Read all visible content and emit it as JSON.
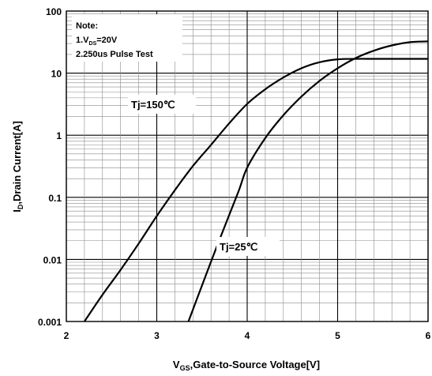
{
  "chart_data": {
    "type": "line",
    "xlabel_main": "V",
    "xlabel_sub": "GS",
    "xlabel_rest": ",Gate-to-Source Voltage[V]",
    "ylabel_main": "I",
    "ylabel_sub": "D",
    "ylabel_rest": ",Drain Current[A]",
    "xlim": [
      2,
      6
    ],
    "ylim": [
      0.001,
      100
    ],
    "yscale": "log",
    "grid": true,
    "x_ticks": [
      "2",
      "3",
      "4",
      "5",
      "6"
    ],
    "y_ticks": [
      "0.001",
      "0.01",
      "0.1",
      "1",
      "10",
      "100"
    ],
    "note": {
      "title": "Note:",
      "line1_main": "1.V",
      "line1_sub": "DS",
      "line1_rest": "=20V",
      "line2": "2.250us Pulse Test"
    },
    "series": [
      {
        "name": "Tj=150℃",
        "x": [
          2.2,
          2.4,
          2.6,
          2.8,
          3.0,
          3.2,
          3.4,
          3.6,
          3.8,
          4.0,
          4.2,
          4.4,
          4.6,
          4.8,
          5.0,
          5.2,
          5.4,
          5.6,
          5.8,
          6.0
        ],
        "y": [
          0.001,
          0.0027,
          0.0068,
          0.018,
          0.05,
          0.13,
          0.32,
          0.7,
          1.55,
          3.2,
          5.5,
          8.5,
          12.0,
          15.0,
          16.7,
          17.0,
          17.0,
          17.0,
          17.0,
          17.0
        ]
      },
      {
        "name": "Tj=25℃",
        "x": [
          3.35,
          3.5,
          3.7,
          3.9,
          4.0,
          4.2,
          4.4,
          4.6,
          4.8,
          5.0,
          5.2,
          5.4,
          5.6,
          5.8,
          6.0
        ],
        "y": [
          0.001,
          0.0038,
          0.022,
          0.12,
          0.3,
          0.9,
          2.1,
          4.2,
          7.5,
          12.0,
          17.5,
          23.0,
          28.0,
          31.5,
          32.5
        ]
      }
    ]
  }
}
